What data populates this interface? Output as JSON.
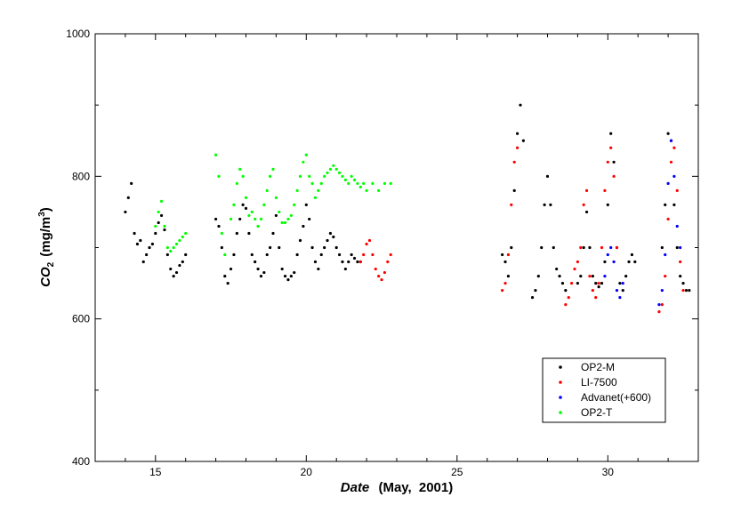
{
  "chart_data": {
    "type": "scatter",
    "xlabel_parts": [
      "Date",
      "(May,",
      "2001)"
    ],
    "ylabel_parts": [
      "CO",
      "2",
      "(mg/m",
      "3",
      ")"
    ],
    "xlim": [
      13,
      33
    ],
    "ylim": [
      400,
      1000
    ],
    "xticks": [
      15,
      20,
      25,
      30
    ],
    "xtick_labels": [
      "15",
      "20",
      "25",
      "30"
    ],
    "yticks": [
      400,
      600,
      800,
      1000
    ],
    "ytick_labels": [
      "400",
      "600",
      "800",
      "1000"
    ],
    "legend_position": "bottom-right",
    "series": [
      {
        "name": "OP2-M",
        "color": "#000000",
        "x": [
          14.0,
          14.1,
          14.2,
          14.3,
          14.4,
          14.5,
          14.6,
          14.7,
          14.8,
          14.9,
          15.0,
          15.1,
          15.2,
          15.3,
          15.4,
          15.5,
          15.6,
          15.7,
          15.8,
          15.9,
          16.0,
          17.0,
          17.1,
          17.2,
          17.3,
          17.4,
          17.5,
          17.6,
          17.7,
          17.8,
          17.9,
          18.0,
          18.1,
          18.2,
          18.3,
          18.4,
          18.5,
          18.6,
          18.7,
          18.8,
          18.9,
          19.0,
          19.1,
          19.2,
          19.3,
          19.4,
          19.5,
          19.6,
          19.7,
          19.8,
          19.9,
          20.0,
          20.1,
          20.2,
          20.3,
          20.4,
          20.5,
          20.6,
          20.7,
          20.8,
          20.9,
          21.0,
          21.1,
          21.2,
          21.3,
          21.4,
          21.5,
          21.6,
          21.7,
          21.8,
          26.5,
          26.6,
          26.7,
          26.8,
          26.9,
          27.0,
          27.1,
          27.2,
          27.5,
          27.6,
          27.7,
          27.8,
          27.9,
          28.0,
          28.1,
          28.2,
          28.3,
          28.4,
          28.5,
          28.6,
          29.0,
          29.1,
          29.2,
          29.3,
          29.4,
          29.5,
          29.6,
          29.7,
          29.8,
          29.9,
          30.0,
          30.1,
          30.2,
          30.3,
          30.4,
          30.5,
          30.6,
          30.7,
          30.8,
          30.9,
          31.8,
          31.9,
          32.0,
          32.1,
          32.2,
          32.3,
          32.4,
          32.5,
          32.6,
          32.7
        ],
        "y": [
          750,
          770,
          790,
          720,
          705,
          710,
          680,
          690,
          700,
          705,
          720,
          735,
          745,
          725,
          690,
          670,
          660,
          665,
          675,
          680,
          690,
          740,
          730,
          700,
          660,
          650,
          670,
          690,
          720,
          740,
          760,
          755,
          720,
          690,
          680,
          670,
          660,
          665,
          690,
          700,
          720,
          745,
          700,
          670,
          660,
          655,
          660,
          665,
          690,
          710,
          730,
          760,
          740,
          700,
          680,
          670,
          690,
          700,
          710,
          720,
          715,
          700,
          690,
          680,
          670,
          680,
          690,
          685,
          680,
          680,
          690,
          680,
          660,
          700,
          780,
          860,
          900,
          850,
          630,
          640,
          660,
          700,
          760,
          800,
          760,
          700,
          670,
          660,
          650,
          640,
          650,
          660,
          700,
          750,
          700,
          660,
          650,
          645,
          650,
          680,
          760,
          860,
          820,
          700,
          650,
          640,
          660,
          680,
          690,
          680,
          700,
          760,
          860,
          850,
          760,
          700,
          660,
          650,
          640,
          640
        ]
      },
      {
        "name": "LI-7500",
        "color": "#ff0000",
        "x": [
          21.8,
          21.9,
          22.0,
          22.1,
          22.2,
          22.3,
          22.4,
          22.5,
          22.6,
          22.7,
          22.8,
          26.5,
          26.6,
          26.7,
          26.8,
          26.9,
          27.0,
          28.6,
          28.7,
          28.8,
          28.9,
          29.0,
          29.1,
          29.2,
          29.3,
          29.4,
          29.5,
          29.6,
          29.7,
          29.8,
          29.9,
          30.0,
          30.1,
          30.2,
          30.3,
          31.7,
          31.8,
          31.9,
          32.0,
          32.1,
          32.2,
          32.3,
          32.4,
          32.5
        ],
        "y": [
          680,
          690,
          705,
          710,
          690,
          670,
          660,
          655,
          665,
          680,
          690,
          640,
          650,
          690,
          760,
          820,
          840,
          620,
          630,
          650,
          670,
          680,
          700,
          760,
          780,
          660,
          640,
          630,
          650,
          700,
          780,
          820,
          840,
          800,
          700,
          610,
          620,
          660,
          740,
          820,
          840,
          780,
          680,
          640
        ]
      },
      {
        "name": "Advanet(+600)",
        "color": "#0000ff",
        "x": [
          29.9,
          30.0,
          30.1,
          30.2,
          30.3,
          30.4,
          30.5,
          31.7,
          31.8,
          31.9,
          32.0,
          32.1,
          32.2,
          32.3,
          32.4
        ],
        "y": [
          660,
          690,
          700,
          680,
          640,
          630,
          650,
          620,
          640,
          690,
          790,
          850,
          800,
          730,
          700
        ]
      },
      {
        "name": "OP2-T",
        "color": "#00ff00",
        "x": [
          15.0,
          15.1,
          15.2,
          15.3,
          15.4,
          15.5,
          15.6,
          15.7,
          15.8,
          15.9,
          16.0,
          17.0,
          17.1,
          17.2,
          17.3,
          17.5,
          17.6,
          17.7,
          17.8,
          17.9,
          18.0,
          18.1,
          18.2,
          18.3,
          18.4,
          18.5,
          18.6,
          18.7,
          18.8,
          18.9,
          19.0,
          19.1,
          19.2,
          19.3,
          19.4,
          19.5,
          19.6,
          19.7,
          19.8,
          19.9,
          20.0,
          20.1,
          20.2,
          20.3,
          20.4,
          20.5,
          20.6,
          20.7,
          20.8,
          20.9,
          21.0,
          21.1,
          21.2,
          21.3,
          21.4,
          21.5,
          21.6,
          21.7,
          21.8,
          21.9,
          22.0,
          22.2,
          22.4,
          22.6,
          22.8
        ],
        "y": [
          730,
          750,
          765,
          730,
          700,
          695,
          700,
          705,
          710,
          715,
          720,
          830,
          800,
          720,
          690,
          740,
          760,
          790,
          810,
          800,
          770,
          745,
          750,
          740,
          730,
          740,
          760,
          780,
          800,
          810,
          770,
          750,
          735,
          735,
          740,
          745,
          760,
          780,
          800,
          820,
          830,
          800,
          790,
          770,
          780,
          790,
          800,
          805,
          810,
          815,
          810,
          805,
          800,
          795,
          790,
          800,
          795,
          790,
          785,
          790,
          780,
          790,
          780,
          790,
          790
        ]
      }
    ]
  }
}
